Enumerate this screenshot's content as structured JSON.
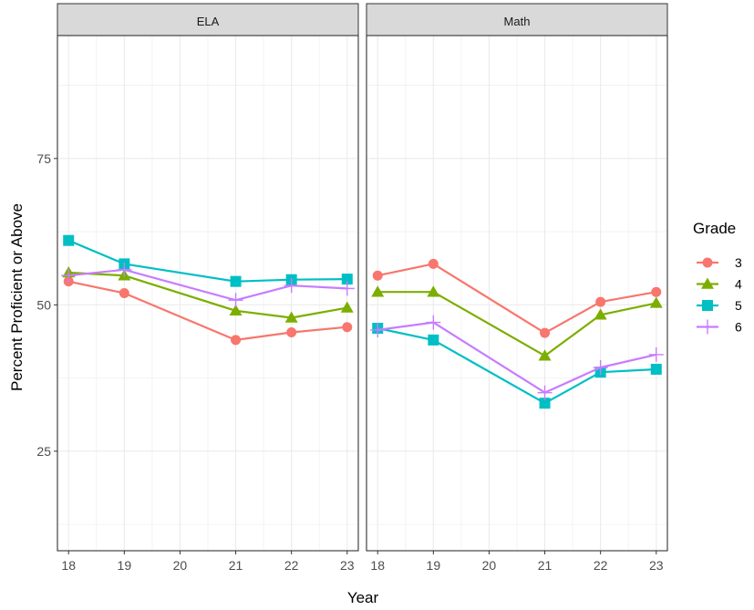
{
  "chart_data": {
    "type": "line",
    "facets": [
      {
        "label": "ELA",
        "series": [
          {
            "name": "3",
            "values": [
              54.0,
              52.0,
              null,
              44.0,
              45.3,
              46.2
            ]
          },
          {
            "name": "4",
            "values": [
              55.5,
              55.0,
              null,
              49.0,
              47.8,
              49.5
            ]
          },
          {
            "name": "5",
            "values": [
              61.0,
              57.0,
              null,
              54.0,
              54.3,
              54.4
            ]
          },
          {
            "name": "6",
            "values": [
              55.0,
              56.0,
              null,
              50.8,
              53.3,
              52.8
            ]
          }
        ]
      },
      {
        "label": "Math",
        "series": [
          {
            "name": "3",
            "values": [
              55.0,
              57.0,
              null,
              45.2,
              50.5,
              52.2
            ]
          },
          {
            "name": "4",
            "values": [
              52.2,
              52.2,
              null,
              41.3,
              48.3,
              50.3
            ]
          },
          {
            "name": "5",
            "values": [
              46.0,
              44.0,
              null,
              33.2,
              38.5,
              39.0
            ]
          },
          {
            "name": "6",
            "values": [
              45.7,
              47.0,
              null,
              35.0,
              39.3,
              41.5
            ]
          }
        ]
      }
    ],
    "x": [
      18,
      19,
      20,
      21,
      22,
      23
    ],
    "xticks": [
      "18",
      "19",
      "20",
      "21",
      "22",
      "23"
    ],
    "yticks": [
      "25",
      "50",
      "75"
    ],
    "xlabel": "Year",
    "ylabel": "Percent Proficient or Above",
    "xlim": [
      17.8,
      23.2
    ],
    "ylim": [
      8.0,
      96.0
    ],
    "grid": true,
    "legend": {
      "title": "Grade",
      "position": "right",
      "entries": [
        "3",
        "4",
        "5",
        "6"
      ]
    },
    "colors": [
      "#F8766D",
      "#7CAE00",
      "#00BFC4",
      "#C77CFF"
    ],
    "markers": [
      "circle",
      "triangle",
      "square",
      "plus"
    ]
  }
}
